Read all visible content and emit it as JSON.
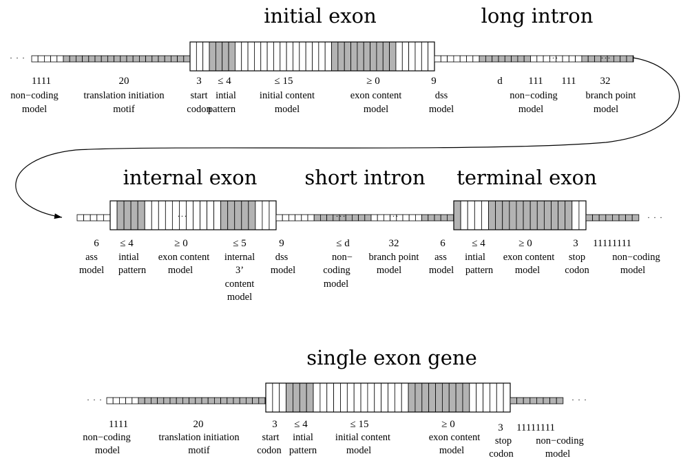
{
  "colors": {
    "shaded": "#b3b3b3",
    "open": "#ffffff",
    "stroke": "#000000"
  },
  "panels": [
    {
      "title": "initial exon",
      "labels": [
        {
          "num": "1111",
          "lines": [
            "non−coding",
            "model"
          ]
        },
        {
          "num": "20",
          "lines": [
            "translation initiation",
            "motif"
          ]
        },
        {
          "num": "3",
          "lines": [
            "start",
            "codon"
          ]
        },
        {
          "num": "≤ 4",
          "lines": [
            "intial",
            "pattern"
          ]
        },
        {
          "num": "≤ 15",
          "lines": [
            "initial content",
            "model"
          ]
        },
        {
          "num": "≥ 0",
          "lines": [
            "exon content",
            "model"
          ]
        },
        {
          "num": "9",
          "lines": [
            "dss",
            "model"
          ]
        }
      ]
    },
    {
      "title": "long intron",
      "labels": [
        {
          "num": "d",
          "lines": []
        },
        {
          "num": "111",
          "lines": [
            "non−coding",
            "model"
          ]
        },
        {
          "num": "111",
          "lines": []
        },
        {
          "num": "32",
          "lines": [
            "branch point",
            "model"
          ]
        }
      ]
    },
    {
      "title": "internal exon",
      "labels": [
        {
          "num": "6",
          "lines": [
            "ass",
            "model"
          ]
        },
        {
          "num": "≤ 4",
          "lines": [
            "intial",
            "pattern"
          ]
        },
        {
          "num": "≥ 0",
          "lines": [
            "exon content",
            "model"
          ]
        },
        {
          "num": "≤ 5",
          "lines": [
            "internal",
            "3’",
            "content",
            "model"
          ]
        },
        {
          "num": "9",
          "lines": [
            "dss",
            "model"
          ]
        }
      ]
    },
    {
      "title": "short intron",
      "labels": [
        {
          "num": "≤ d",
          "lines": [
            "non−",
            "coding",
            "model"
          ]
        },
        {
          "num": "32",
          "lines": [
            "branch point",
            "model"
          ]
        }
      ]
    },
    {
      "title": "terminal exon",
      "labels": [
        {
          "num": "6",
          "lines": [
            "ass",
            "model"
          ]
        },
        {
          "num": "≤ 4",
          "lines": [
            "intial",
            "pattern"
          ]
        },
        {
          "num": "≥ 0",
          "lines": [
            "exon content",
            "model"
          ]
        },
        {
          "num": "3",
          "lines": [
            "stop",
            "codon"
          ]
        },
        {
          "num": "11111111",
          "lines": [
            "non−coding",
            "model"
          ]
        }
      ]
    },
    {
      "title": "single exon gene",
      "labels": [
        {
          "num": "1111",
          "lines": [
            "non−coding",
            "model"
          ]
        },
        {
          "num": "20",
          "lines": [
            "translation initiation",
            "motif"
          ]
        },
        {
          "num": "3",
          "lines": [
            "start",
            "codon"
          ]
        },
        {
          "num": "≤ 4",
          "lines": [
            "intial",
            "pattern"
          ]
        },
        {
          "num": "≤ 15",
          "lines": [
            "initial content",
            "model"
          ]
        },
        {
          "num": "≥ 0",
          "lines": [
            "exon content",
            "model"
          ]
        },
        {
          "num": "3",
          "lines": [
            "stop",
            "codon"
          ]
        },
        {
          "num": "11111111",
          "lines": [
            "non−coding",
            "model"
          ]
        }
      ]
    }
  ],
  "gaps": {
    "ellipsis": "· · ·",
    "gap_dots": "···"
  }
}
